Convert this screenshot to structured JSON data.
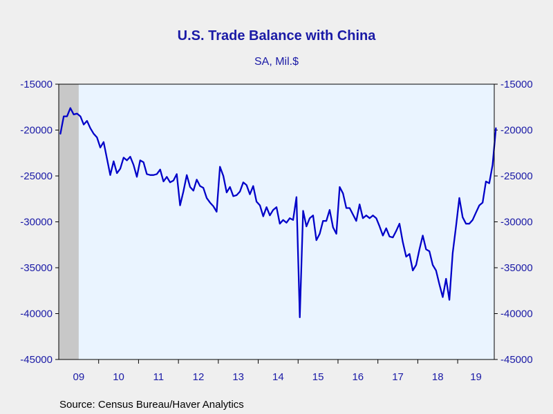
{
  "colors": {
    "background": "#efefef",
    "plot_background": "#eaf4ff",
    "recession_shade": "#c8c8c8",
    "line": "#0000c8",
    "text": "#1a1aa6",
    "axis": "#000000"
  },
  "chart_data": {
    "type": "line",
    "title": "U.S. Trade Balance with China",
    "subtitle": "SA, Mil.$",
    "source": "Source:  Census Bureau/Haver Analytics",
    "xlabel": "",
    "ylabel": "",
    "ylim": [
      -45000,
      -15000
    ],
    "y_ticks": [
      -15000,
      -20000,
      -25000,
      -30000,
      -35000,
      -40000,
      -45000
    ],
    "y_tick_labels": [
      "-15000",
      "-20000",
      "-25000",
      "-30000",
      "-35000",
      "-40000",
      "-45000"
    ],
    "y_axes": "left-and-right",
    "grid": false,
    "x_start": "2009-01",
    "x_end": "2019-11",
    "x_tick_labels": [
      "09",
      "10",
      "11",
      "12",
      "13",
      "14",
      "15",
      "16",
      "17",
      "18",
      "19"
    ],
    "recession_shading": [
      {
        "start": "2009-01",
        "end": "2009-06"
      }
    ],
    "series": [
      {
        "values": [
          -20400,
          -18500,
          -18500,
          -17600,
          -18300,
          -18200,
          -18500,
          -19400,
          -19000,
          -19800,
          -20400,
          -20800,
          -21900,
          -21300,
          -23100,
          -24900,
          -23400,
          -24700,
          -24200,
          -23000,
          -23300,
          -22900,
          -23800,
          -25100,
          -23300,
          -23500,
          -24800,
          -24900,
          -24900,
          -24800,
          -24300,
          -25600,
          -25100,
          -25700,
          -25500,
          -24800,
          -28200,
          -26700,
          -24900,
          -26200,
          -26600,
          -25400,
          -26100,
          -26300,
          -27400,
          -27900,
          -28300,
          -28900,
          -24000,
          -25000,
          -26800,
          -26200,
          -27200,
          -27100,
          -26700,
          -25700,
          -26000,
          -27000,
          -26100,
          -27800,
          -28200,
          -29400,
          -28400,
          -29300,
          -28700,
          -28400,
          -30200,
          -29800,
          -30100,
          -29600,
          -29800,
          -27300,
          -40400,
          -28800,
          -30500,
          -29600,
          -29300,
          -32000,
          -31300,
          -29900,
          -29900,
          -28700,
          -30600,
          -31300,
          -26200,
          -26900,
          -28500,
          -28500,
          -29200,
          -29900,
          -28100,
          -29600,
          -29300,
          -29600,
          -29300,
          -29600,
          -30500,
          -31500,
          -30700,
          -31600,
          -31700,
          -31000,
          -30200,
          -32200,
          -33800,
          -33500,
          -35300,
          -34700,
          -33000,
          -31500,
          -33000,
          -33200,
          -34700,
          -35300,
          -36800,
          -38200,
          -36200,
          -38500,
          -33400,
          -30500,
          -27400,
          -29500,
          -30200,
          -30200,
          -29800,
          -29000,
          -28200,
          -27900,
          -25600,
          -25800,
          -23800,
          -19800
        ]
      }
    ]
  }
}
